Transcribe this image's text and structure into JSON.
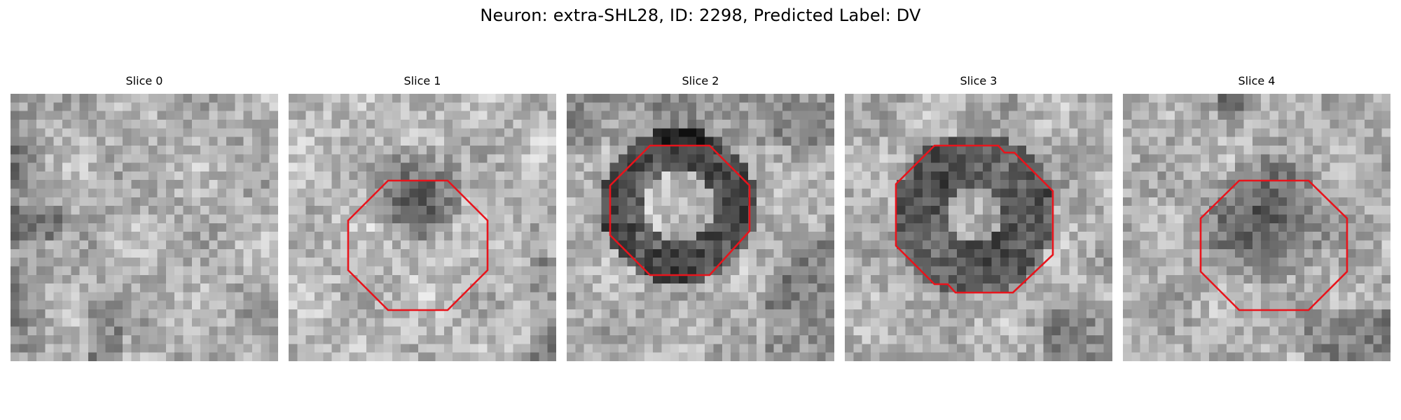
{
  "figure": {
    "title": "Neuron: extra-SHL28, ID: 2298, Predicted Label: DV"
  },
  "panels": [
    {
      "title": "Slice 0",
      "has_contour": false
    },
    {
      "title": "Slice 1",
      "has_contour": true
    },
    {
      "title": "Slice 2",
      "has_contour": true
    },
    {
      "title": "Slice 3",
      "has_contour": true
    },
    {
      "title": "Slice 4",
      "has_contour": true
    }
  ],
  "colors": {
    "contour": "#e8141c"
  }
}
